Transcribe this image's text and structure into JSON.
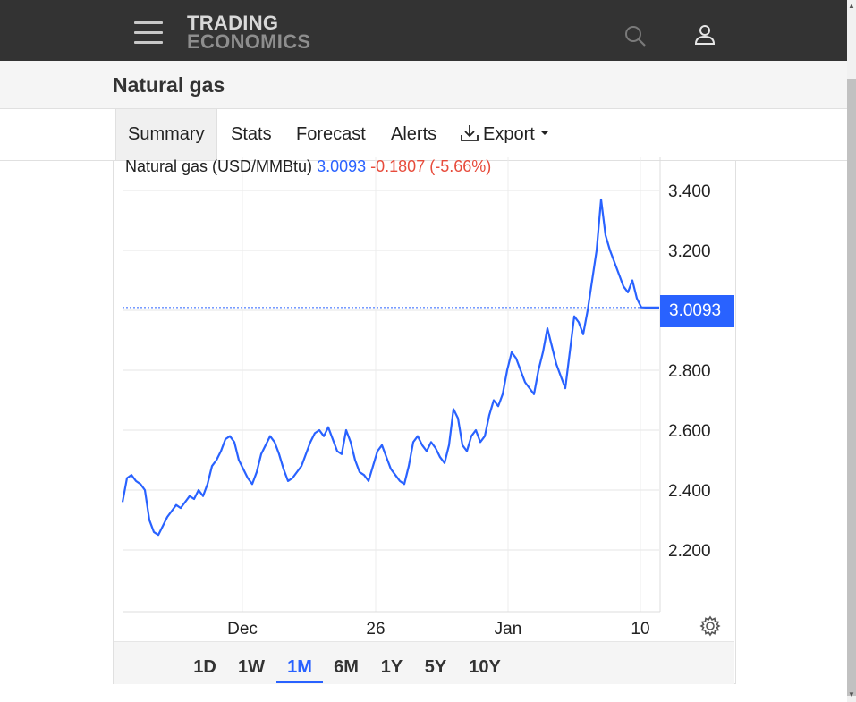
{
  "header": {
    "logo_line1": "TRADING",
    "logo_line2": "ECONOMICS",
    "icons": [
      "hamburger-menu-icon",
      "search-icon",
      "user-icon"
    ]
  },
  "page": {
    "title": "Natural gas"
  },
  "tabs": [
    {
      "label": "Summary",
      "active": true
    },
    {
      "label": "Stats"
    },
    {
      "label": "Forecast"
    },
    {
      "label": "Alerts"
    },
    {
      "label": "Export"
    }
  ],
  "chart_legend": {
    "name": "Natural gas (USD/MMBtu)",
    "price": "3.0093",
    "change": "-0.1807",
    "change_pct": "(-5.66%)"
  },
  "current_price_label": "3.0093",
  "range_buttons": [
    {
      "label": "1D"
    },
    {
      "label": "1W"
    },
    {
      "label": "1M",
      "active": true
    },
    {
      "label": "6M"
    },
    {
      "label": "1Y"
    },
    {
      "label": "5Y"
    },
    {
      "label": "10Y"
    }
  ],
  "colors": {
    "line": "#2962ff",
    "negative": "#e74c3c",
    "header_bg": "#333333"
  },
  "chart_data": {
    "type": "line",
    "title": "Natural gas (USD/MMBtu)",
    "x_tick_labels": [
      "Dec",
      "26",
      "Jan",
      "10"
    ],
    "y_tick_labels": [
      "3.400",
      "3.200",
      "2.800",
      "2.600",
      "2.400",
      "2.200"
    ],
    "ylim": [
      2.0,
      3.5
    ],
    "last_value": 3.0093,
    "series": [
      {
        "x": [
          0,
          1,
          2,
          3,
          4,
          5,
          6,
          7,
          8,
          9,
          10,
          11,
          12,
          13,
          14,
          15,
          16,
          17,
          18,
          19,
          20,
          21,
          22,
          23,
          24,
          25,
          26,
          27,
          28,
          29,
          30,
          31,
          32,
          33,
          34,
          35,
          36,
          37,
          38,
          39,
          40,
          41,
          42,
          43,
          44,
          45,
          46,
          47,
          48,
          49,
          50,
          51,
          52,
          53,
          54,
          55,
          56,
          57,
          58,
          59,
          60,
          61,
          62,
          63,
          64,
          65,
          66,
          67,
          68,
          69,
          70,
          71,
          72,
          73,
          74,
          75,
          76,
          77,
          78,
          79,
          80,
          81,
          82,
          83,
          84,
          85,
          86,
          87,
          88,
          89,
          90,
          91,
          92,
          93,
          94,
          95,
          96,
          97,
          98,
          99,
          100,
          101,
          102,
          103,
          104,
          105,
          106,
          107,
          108,
          109,
          110,
          111,
          112,
          113,
          114,
          115,
          116,
          117,
          118,
          119,
          120
        ],
        "values": [
          2.36,
          2.44,
          2.45,
          2.43,
          2.42,
          2.4,
          2.3,
          2.26,
          2.25,
          2.28,
          2.31,
          2.33,
          2.35,
          2.34,
          2.36,
          2.38,
          2.37,
          2.4,
          2.38,
          2.42,
          2.48,
          2.5,
          2.53,
          2.57,
          2.58,
          2.56,
          2.5,
          2.47,
          2.44,
          2.42,
          2.46,
          2.52,
          2.55,
          2.58,
          2.56,
          2.52,
          2.47,
          2.43,
          2.44,
          2.46,
          2.48,
          2.52,
          2.56,
          2.59,
          2.6,
          2.58,
          2.61,
          2.57,
          2.53,
          2.52,
          2.6,
          2.56,
          2.5,
          2.46,
          2.45,
          2.43,
          2.48,
          2.53,
          2.55,
          2.51,
          2.47,
          2.45,
          2.43,
          2.42,
          2.48,
          2.56,
          2.58,
          2.55,
          2.53,
          2.56,
          2.54,
          2.51,
          2.49,
          2.55,
          2.67,
          2.64,
          2.55,
          2.53,
          2.58,
          2.6,
          2.56,
          2.58,
          2.65,
          2.7,
          2.68,
          2.72,
          2.8,
          2.86,
          2.84,
          2.8,
          2.76,
          2.74,
          2.72,
          2.8,
          2.86,
          2.94,
          2.88,
          2.82,
          2.78,
          2.74,
          2.86,
          2.98,
          2.96,
          2.92,
          3.0,
          3.1,
          3.2,
          3.37,
          3.25,
          3.2,
          3.16,
          3.12,
          3.08,
          3.06,
          3.1,
          3.04,
          3.01,
          3.0093,
          3.0093,
          3.0093,
          3.0093
        ]
      }
    ]
  }
}
